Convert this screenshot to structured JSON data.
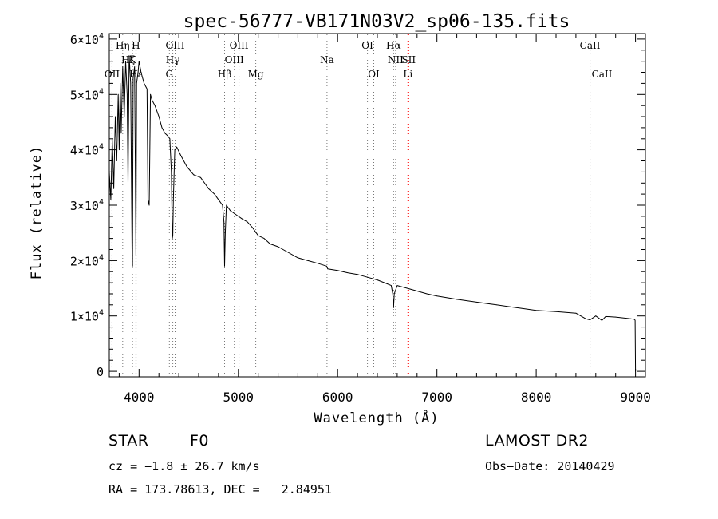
{
  "chart_data": {
    "type": "line",
    "title": "spec-56777-VB171N03V2_sp06-135.fits",
    "xlabel": "Wavelength (Å)",
    "ylabel": "Flux (relative)",
    "xlim": [
      3700,
      9100
    ],
    "ylim": [
      -1000,
      61000
    ],
    "xticks": [
      4000,
      5000,
      6000,
      7000,
      8000,
      9000
    ],
    "xtick_labels": [
      "4000",
      "5000",
      "6000",
      "7000",
      "8000",
      "9000"
    ],
    "yticks": [
      0,
      10000,
      20000,
      30000,
      40000,
      50000,
      60000
    ],
    "ytick_labels": [
      {
        "mant": "0",
        "exp": ""
      },
      {
        "mant": "1×10",
        "exp": "4"
      },
      {
        "mant": "2×10",
        "exp": "4"
      },
      {
        "mant": "3×10",
        "exp": "4"
      },
      {
        "mant": "4×10",
        "exp": "4"
      },
      {
        "mant": "5×10",
        "exp": "4"
      },
      {
        "mant": "6×10",
        "exp": "4"
      }
    ],
    "grid": false,
    "series": [
      {
        "color": "#000000",
        "x": [
          3700,
          3715,
          3730,
          3745,
          3760,
          3775,
          3790,
          3800,
          3810,
          3820,
          3835,
          3850,
          3865,
          3880,
          3889,
          3900,
          3915,
          3930,
          3934,
          3940,
          3955,
          3962,
          3968,
          3975,
          3990,
          4000,
          4020,
          4050,
          4080,
          4090,
          4102,
          4115,
          4130,
          4160,
          4200,
          4230,
          4260,
          4290,
          4310,
          4325,
          4335,
          4340,
          4345,
          4360,
          4380,
          4420,
          4480,
          4550,
          4620,
          4700,
          4760,
          4800,
          4840,
          4855,
          4861,
          4868,
          4880,
          4920,
          4960,
          5000,
          5040,
          5090,
          5140,
          5200,
          5260,
          5320,
          5400,
          5500,
          5600,
          5700,
          5800,
          5890,
          5900,
          6000,
          6100,
          6200,
          6300,
          6400,
          6500,
          6540,
          6555,
          6563,
          6570,
          6600,
          6700,
          6800,
          6900,
          7000,
          7200,
          7400,
          7600,
          7800,
          8000,
          8200,
          8400,
          8498,
          8542,
          8600,
          8662,
          8700,
          8800,
          8900,
          8950,
          8990,
          8996,
          9000
        ],
        "y": [
          36000,
          31000,
          42000,
          33000,
          46000,
          38000,
          50000,
          40000,
          52000,
          43000,
          55000,
          46000,
          56000,
          50000,
          34000,
          57000,
          52000,
          20000,
          19000,
          53000,
          55000,
          38000,
          21000,
          52000,
          54000,
          56000,
          54000,
          52000,
          51000,
          31000,
          30000,
          50000,
          49000,
          48000,
          46000,
          44000,
          43000,
          42500,
          42000,
          36000,
          24000,
          24500,
          31000,
          40000,
          40500,
          39000,
          37000,
          35500,
          35000,
          33000,
          32000,
          31000,
          30000,
          27000,
          19000,
          25000,
          30000,
          29000,
          28500,
          28000,
          27500,
          27000,
          26000,
          24500,
          24000,
          23000,
          22500,
          21500,
          20500,
          20000,
          19500,
          19000,
          18500,
          18200,
          17800,
          17500,
          17000,
          16500,
          15800,
          15500,
          14000,
          11500,
          14000,
          15500,
          15000,
          14500,
          14000,
          13600,
          13000,
          12500,
          12000,
          11500,
          11000,
          10800,
          10500,
          9500,
          9300,
          10000,
          9200,
          9900,
          9800,
          9600,
          9500,
          9400,
          9200,
          0
        ]
      }
    ],
    "lines": [
      {
        "label": "Hη",
        "wl": 3835,
        "row": 1,
        "color": "#777777"
      },
      {
        "label": "H",
        "wl": 3968,
        "row": 1,
        "color": "#777777"
      },
      {
        "label": "Hζ",
        "wl": 3889,
        "row": 2,
        "color": "#777777"
      },
      {
        "label": "K",
        "wl": 3934,
        "row": 2,
        "color": "#777777"
      },
      {
        "label": "OII",
        "wl": 3727,
        "row": 3,
        "color": "#777777"
      },
      {
        "label": "Hε",
        "wl": 3970,
        "row": 3,
        "color": "#777777"
      },
      {
        "label": "OIII",
        "wl": 4363,
        "row": 1,
        "color": "#777777"
      },
      {
        "label": "Hγ",
        "wl": 4340,
        "row": 2,
        "color": "#777777"
      },
      {
        "label": "G",
        "wl": 4305,
        "row": 3,
        "color": "#777777"
      },
      {
        "label": "Hβ",
        "wl": 4861,
        "row": 3,
        "color": "#777777"
      },
      {
        "label": "OIII",
        "wl": 5007,
        "row": 1,
        "color": "#777777"
      },
      {
        "label": "OIII",
        "wl": 4959,
        "row": 2,
        "color": "#777777"
      },
      {
        "label": "Mg",
        "wl": 5175,
        "row": 3,
        "color": "#777777"
      },
      {
        "label": "Na",
        "wl": 5893,
        "row": 2,
        "color": "#777777"
      },
      {
        "label": "OI",
        "wl": 6300,
        "row": 1,
        "color": "#777777"
      },
      {
        "label": "OI",
        "wl": 6364,
        "row": 3,
        "color": "#777777"
      },
      {
        "label": "Hα",
        "wl": 6563,
        "row": 1,
        "color": "#777777"
      },
      {
        "label": "NII",
        "wl": 6584,
        "row": 2,
        "color": "#777777"
      },
      {
        "label": "SII",
        "wl": 6716,
        "row": 2,
        "color": "#ff0000"
      },
      {
        "label": "Li",
        "wl": 6708,
        "row": 3,
        "color": "#ff0000"
      },
      {
        "label": "CaII",
        "wl": 8542,
        "row": 1,
        "color": "#777777"
      },
      {
        "label": "CaII",
        "wl": 8662,
        "row": 3,
        "color": "#777777"
      }
    ]
  },
  "info": {
    "class_label": "STAR",
    "subclass": "F0",
    "survey": "LAMOST DR2",
    "redshift": "cz = −1.8 ± 26.7 km/s",
    "obs_date": "Obs−Date: 20140429",
    "coords": "RA = 173.78613, DEC =   2.84951"
  }
}
